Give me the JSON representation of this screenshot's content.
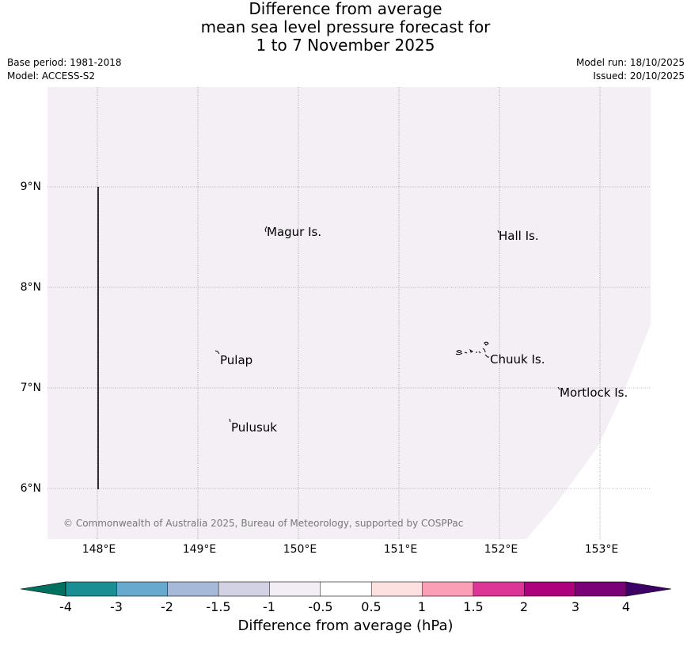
{
  "title": {
    "line1": "Difference from average",
    "line2": "mean sea level pressure forecast for",
    "line3": "1 to 7 November 2025"
  },
  "meta": {
    "base_period": "Base period: 1981-2018",
    "model": "Model: ACCESS-S2",
    "model_run": "Model run: 18/10/2025",
    "issued": "Issued: 20/10/2025"
  },
  "map": {
    "background_color": "#f4eef5",
    "lat_labels": [
      "9°N",
      "8°N",
      "7°N",
      "6°N"
    ],
    "lon_labels": [
      "148°E",
      "149°E",
      "150°E",
      "151°E",
      "152°E",
      "153°E"
    ],
    "places": [
      "Magur Is.",
      "Hall Is.",
      "Pulap",
      "Chuuk Is.",
      "Mortlock Is.",
      "Pulusuk"
    ],
    "copyright": "© Commonwealth of Australia 2025, Bureau of Meteorology, supported by COSPPac"
  },
  "colorbar": {
    "label": "Difference from average (hPa)",
    "ticks": [
      "-4",
      "-3",
      "-2",
      "-1.5",
      "-1",
      "-0.5",
      "0.5",
      "1",
      "1.5",
      "2",
      "3",
      "4"
    ],
    "low_extend_color": "#00705f",
    "high_extend_color": "#3d0066",
    "colors": [
      "#1b8e94",
      "#67a9cf",
      "#a6b9d9",
      "#d3d2e5",
      "#f3eef6",
      "#ffffff",
      "#fde0e0",
      "#fa9fb5",
      "#dd3497",
      "#ae017e",
      "#7a0177"
    ]
  }
}
